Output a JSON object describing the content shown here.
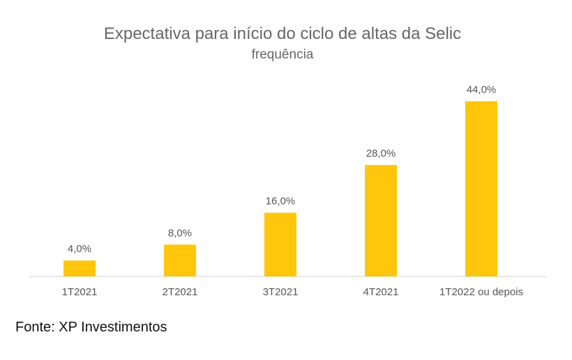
{
  "chart_data": {
    "type": "bar",
    "title": "Expectativa para início do ciclo de altas da Selic",
    "subtitle": "frequência",
    "categories": [
      "1T2021",
      "2T2021",
      "3T2021",
      "4T2021",
      "1T2022 ou depois"
    ],
    "values": [
      4.0,
      8.0,
      16.0,
      28.0,
      44.0
    ],
    "data_labels": [
      "4,0%",
      "8,0%",
      "16,0%",
      "28,0%",
      "44,0%"
    ],
    "unit": "%",
    "ylim": [
      0,
      46
    ],
    "grid": false,
    "bar_color": "#FFC60B"
  },
  "source": "Fonte: XP Investimentos"
}
